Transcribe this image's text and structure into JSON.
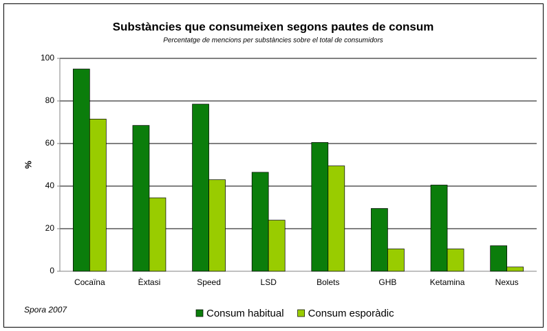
{
  "chart_data": {
    "type": "bar",
    "title": "Substàncies que consumeixen segons pautes de consum",
    "subtitle": "Percentatge de mencions per substàncies sobre el total de consumidors",
    "y_label": "%",
    "source": "Spora 2007",
    "categories": [
      "Cocaïna",
      "Èxtasi",
      "Speed",
      "LSD",
      "Bolets",
      "GHB",
      "Ketamina",
      "Nexus"
    ],
    "series": [
      {
        "name": "Consum habitual",
        "color": "#0b7d0b",
        "values": [
          95,
          68.5,
          78.5,
          46.5,
          60.5,
          29.5,
          40.5,
          12
        ]
      },
      {
        "name": "Consum esporàdic",
        "color": "#99cc00",
        "values": [
          71.5,
          34.5,
          43,
          24,
          49.5,
          10.5,
          10.5,
          2
        ]
      }
    ],
    "ylim": [
      0,
      100
    ],
    "yticks": [
      0,
      20,
      40,
      60,
      80,
      100
    ],
    "grid": true,
    "legend": "bottom"
  }
}
